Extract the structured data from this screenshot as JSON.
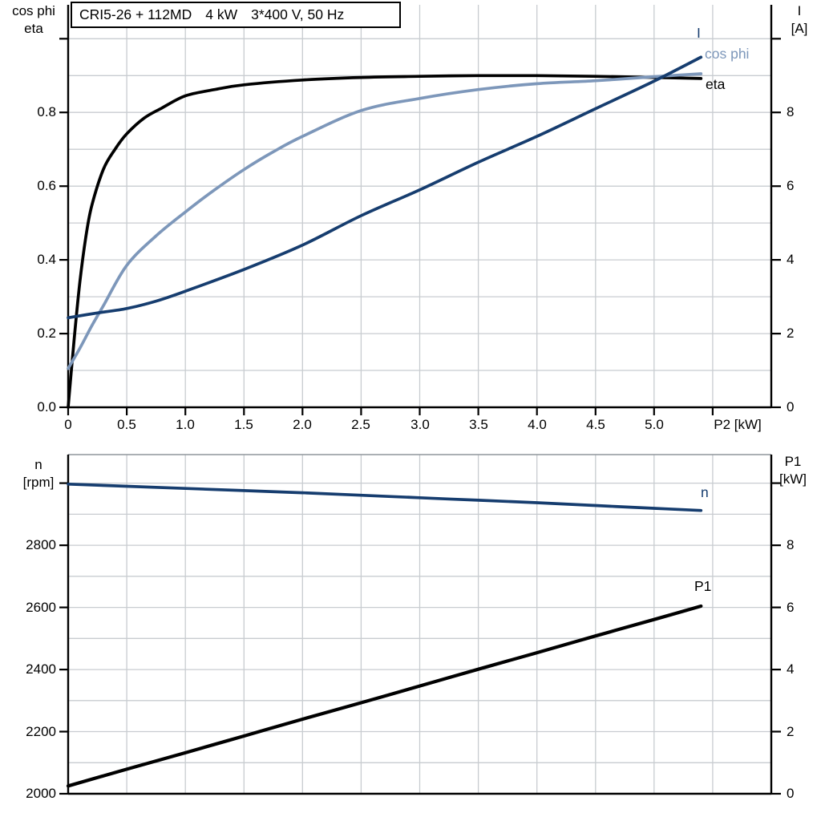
{
  "ui": {
    "title_box": {
      "model": "CRI5-26 + 112MD",
      "power": "4 kW",
      "supply": "3*400 V, 50 Hz"
    },
    "top_chart": {
      "left_axis_title": [
        "cos phi",
        "eta"
      ],
      "right_axis_title": [
        "I",
        "[A]"
      ],
      "x_axis_label": "P2 [kW]",
      "left_ticks": [
        "0.0",
        "0.2",
        "0.4",
        "0.6",
        "0.8"
      ],
      "right_ticks": [
        "0",
        "2",
        "4",
        "6",
        "8"
      ],
      "x_ticks": [
        "0",
        "0.5",
        "1.0",
        "1.5",
        "2.0",
        "2.5",
        "3.0",
        "3.5",
        "4.0",
        "4.5",
        "5.0"
      ]
    },
    "bottom_chart": {
      "left_axis_title": [
        "n",
        "[rpm]"
      ],
      "right_axis_title": [
        "P1",
        "[kW]"
      ],
      "left_ticks": [
        "2800",
        "2600",
        "2400",
        "2200",
        "2000"
      ],
      "right_ticks": [
        "8",
        "6",
        "4",
        "2",
        "0"
      ]
    },
    "colors": {
      "eta": "#000000",
      "cos_phi": "#7D97BA",
      "current": "#163D6F",
      "speed": "#163D6F",
      "p1": "#000000",
      "grid": "#C8CCD0",
      "axis": "#000000",
      "frame_top": "#8F959B"
    }
  },
  "chart_data": [
    {
      "type": "line",
      "title": "CRI5-26 + 112MD 4 kW 3*400 V, 50 Hz",
      "xlabel": "P2 [kW]",
      "xlim": [
        0,
        6.0
      ],
      "x_tick_step": 0.5,
      "grid": true,
      "legend_position": "inline-right",
      "axes": {
        "left": {
          "label": "cos phi / eta",
          "lim": [
            0,
            1.092
          ],
          "tick_step": 0.2,
          "grid_step": 0.1
        },
        "right": {
          "label": "I [A]",
          "lim": [
            0,
            10.92
          ],
          "tick_step": 2,
          "grid_step": 1
        }
      },
      "series": [
        {
          "name": "eta",
          "axis": "left",
          "color_key": "eta",
          "x": [
            0,
            0.05,
            0.1,
            0.15,
            0.2,
            0.3,
            0.4,
            0.5,
            0.65,
            0.8,
            1.0,
            1.25,
            1.5,
            2.0,
            2.5,
            3.0,
            3.5,
            4.0,
            4.5,
            5.0,
            5.4
          ],
          "y": [
            0,
            0.18,
            0.34,
            0.46,
            0.545,
            0.645,
            0.7,
            0.742,
            0.785,
            0.812,
            0.845,
            0.862,
            0.875,
            0.888,
            0.895,
            0.898,
            0.9,
            0.9,
            0.898,
            0.895,
            0.892
          ]
        },
        {
          "name": "cos phi",
          "axis": "left",
          "color_key": "cos_phi",
          "x": [
            0,
            0.1,
            0.2,
            0.3,
            0.5,
            0.75,
            1.0,
            1.25,
            1.5,
            1.75,
            2.0,
            2.5,
            3.0,
            3.5,
            4.0,
            4.5,
            5.0,
            5.4
          ],
          "y": [
            0.105,
            0.16,
            0.22,
            0.275,
            0.385,
            0.465,
            0.53,
            0.59,
            0.645,
            0.693,
            0.735,
            0.805,
            0.838,
            0.862,
            0.878,
            0.886,
            0.897,
            0.905
          ]
        },
        {
          "name": "I",
          "axis": "right",
          "color_key": "current",
          "x": [
            0,
            0.25,
            0.5,
            0.75,
            1.0,
            1.5,
            2.0,
            2.5,
            3.0,
            3.5,
            4.0,
            4.5,
            5.0,
            5.4
          ],
          "y": [
            2.43,
            2.56,
            2.68,
            2.88,
            3.15,
            3.74,
            4.4,
            5.2,
            5.9,
            6.65,
            7.35,
            8.1,
            8.85,
            9.5
          ]
        }
      ]
    },
    {
      "type": "line",
      "title": "",
      "xlabel": "",
      "xlim": [
        0,
        6.0
      ],
      "x_tick_step": 0.5,
      "grid": true,
      "legend_position": "inline-right",
      "axes": {
        "left": {
          "label": "n [rpm]",
          "lim": [
            2000,
            3092
          ],
          "tick_step": 200,
          "grid_step": 100
        },
        "right": {
          "label": "P1 [kW]",
          "lim": [
            0,
            10.92
          ],
          "tick_step": 2,
          "grid_step": 1
        }
      },
      "series": [
        {
          "name": "n",
          "axis": "left",
          "color_key": "speed",
          "x": [
            0,
            0.5,
            1.0,
            1.5,
            2.0,
            2.5,
            3.0,
            3.5,
            4.0,
            4.5,
            5.0,
            5.4
          ],
          "y": [
            2997,
            2990,
            2983,
            2976,
            2969,
            2961,
            2953,
            2945,
            2937,
            2928,
            2919,
            2912
          ]
        },
        {
          "name": "P1",
          "axis": "right",
          "color_key": "p1",
          "x": [
            0,
            0.5,
            1.0,
            1.5,
            2.0,
            2.5,
            3.0,
            3.5,
            4.0,
            4.5,
            5.0,
            5.4
          ],
          "y": [
            0.25,
            0.79,
            1.32,
            1.86,
            2.4,
            2.93,
            3.47,
            4.01,
            4.54,
            5.08,
            5.61,
            6.04
          ]
        }
      ]
    }
  ]
}
